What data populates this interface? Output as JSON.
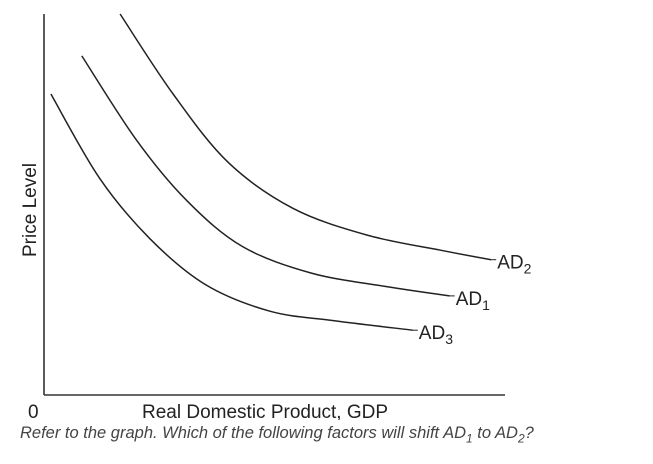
{
  "chart_data": {
    "type": "line",
    "xlabel": "Real Domestic Product, GDP",
    "ylabel": "Price Level",
    "origin_label": "0",
    "xlim": [
      0,
      100
    ],
    "ylim": [
      0,
      100
    ],
    "grid": false,
    "legend": "none",
    "series": [
      {
        "name": "AD2",
        "label_main": "AD",
        "label_sub": "2",
        "points": [
          [
            16.5,
            100
          ],
          [
            28,
            79
          ],
          [
            40,
            61
          ],
          [
            54,
            49
          ],
          [
            70,
            42
          ],
          [
            86,
            38
          ],
          [
            97,
            35.5
          ]
        ]
      },
      {
        "name": "AD1",
        "label_main": "AD",
        "label_sub": "1",
        "points": [
          [
            8.2,
            89
          ],
          [
            20,
            67
          ],
          [
            31,
            51
          ],
          [
            43,
            39
          ],
          [
            58,
            32
          ],
          [
            74,
            28.5
          ],
          [
            88,
            26
          ]
        ]
      },
      {
        "name": "AD3",
        "label_main": "AD",
        "label_sub": "3",
        "points": [
          [
            1.5,
            79
          ],
          [
            12,
            57
          ],
          [
            23,
            41
          ],
          [
            35,
            29
          ],
          [
            49,
            22
          ],
          [
            63,
            19.5
          ],
          [
            80,
            17
          ]
        ]
      }
    ]
  },
  "question": {
    "prefix": "Refer to the graph. Which of the following factors will shift AD",
    "sub1": "1",
    "middle": " to AD",
    "sub2": "2",
    "suffix": "?"
  }
}
